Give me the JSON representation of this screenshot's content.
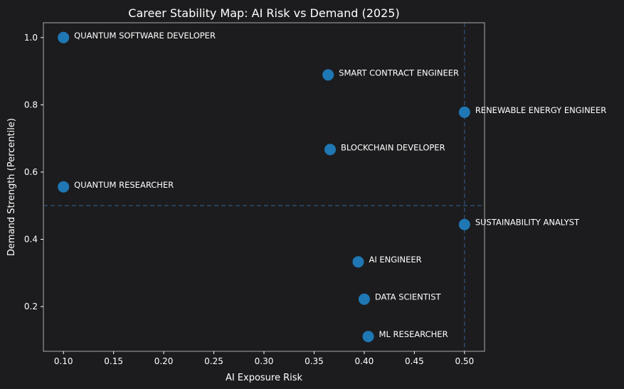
{
  "chart_data": {
    "type": "scatter",
    "title": "Career Stability Map: AI Risk vs Demand (2025)",
    "xlabel": "AI Exposure Risk",
    "ylabel": "Demand Strength (Percentile)",
    "xlim": [
      0.08,
      0.52
    ],
    "ylim": [
      0.067,
      1.044
    ],
    "xticks": [
      0.1,
      0.15,
      0.2,
      0.25,
      0.3,
      0.35,
      0.4,
      0.45,
      0.5
    ],
    "xtick_labels": [
      "0.10",
      "0.15",
      "0.20",
      "0.25",
      "0.30",
      "0.35",
      "0.40",
      "0.45",
      "0.50"
    ],
    "yticks": [
      0.2,
      0.4,
      0.6,
      0.8,
      1.0
    ],
    "ytick_labels": [
      "0.2",
      "0.4",
      "0.6",
      "0.8",
      "1.0"
    ],
    "grid": false,
    "reference_lines": {
      "x": 0.5,
      "y": 0.5,
      "style": "dashed"
    },
    "colors": {
      "background": "#1c1c1e",
      "point": "#1f77b4",
      "refline": "#2d4a6b",
      "axes": "#aaaaaa"
    },
    "points": [
      {
        "label": "QUANTUM SOFTWARE DEVELOPER",
        "x": 0.1,
        "y": 1.0
      },
      {
        "label": "SMART CONTRACT ENGINEER",
        "x": 0.364,
        "y": 0.889
      },
      {
        "label": "RENEWABLE ENERGY ENGINEER",
        "x": 0.5,
        "y": 0.778
      },
      {
        "label": "BLOCKCHAIN DEVELOPER",
        "x": 0.366,
        "y": 0.667
      },
      {
        "label": "QUANTUM RESEARCHER",
        "x": 0.1,
        "y": 0.556
      },
      {
        "label": "SUSTAINABILITY ANALYST",
        "x": 0.5,
        "y": 0.444
      },
      {
        "label": "AI ENGINEER",
        "x": 0.394,
        "y": 0.333
      },
      {
        "label": "DATA SCIENTIST",
        "x": 0.4,
        "y": 0.222
      },
      {
        "label": "ML RESEARCHER",
        "x": 0.404,
        "y": 0.111
      }
    ]
  }
}
